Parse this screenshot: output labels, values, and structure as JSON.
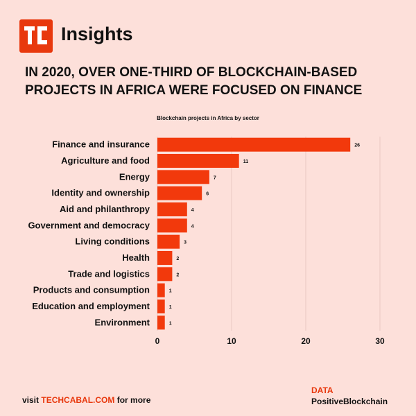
{
  "brand": {
    "logo_text": "TC",
    "name": "Insights",
    "logo_color": "#e8380d"
  },
  "headline": "IN 2020, OVER ONE-THIRD OF BLOCKCHAIN-BASED PROJECTS IN AFRICA WERE FOCUSED ON FINANCE",
  "chart_data": {
    "type": "bar",
    "orientation": "horizontal",
    "title": "Blockchain projects in Africa by sector",
    "categories": [
      "Finance and insurance",
      "Agriculture and food",
      "Energy",
      "Identity and ownership",
      "Aid and philanthropy",
      "Government and democracy",
      "Living conditions",
      "Health",
      "Trade and logistics",
      "Products and consumption",
      "Education and employment",
      "Environment"
    ],
    "values": [
      26,
      11,
      7,
      6,
      4,
      4,
      3,
      2,
      2,
      1,
      1,
      1
    ],
    "xlim": [
      0,
      30
    ],
    "xticks": [
      0,
      10,
      20,
      30
    ],
    "grid": true,
    "bar_color": "#f2390c",
    "xlabel": "",
    "ylabel": ""
  },
  "footer": {
    "prefix": "visit",
    "link": "TECHCABAL.COM",
    "suffix": "for more"
  },
  "source": {
    "label": "DATA",
    "name": "PositiveBlockchain"
  }
}
